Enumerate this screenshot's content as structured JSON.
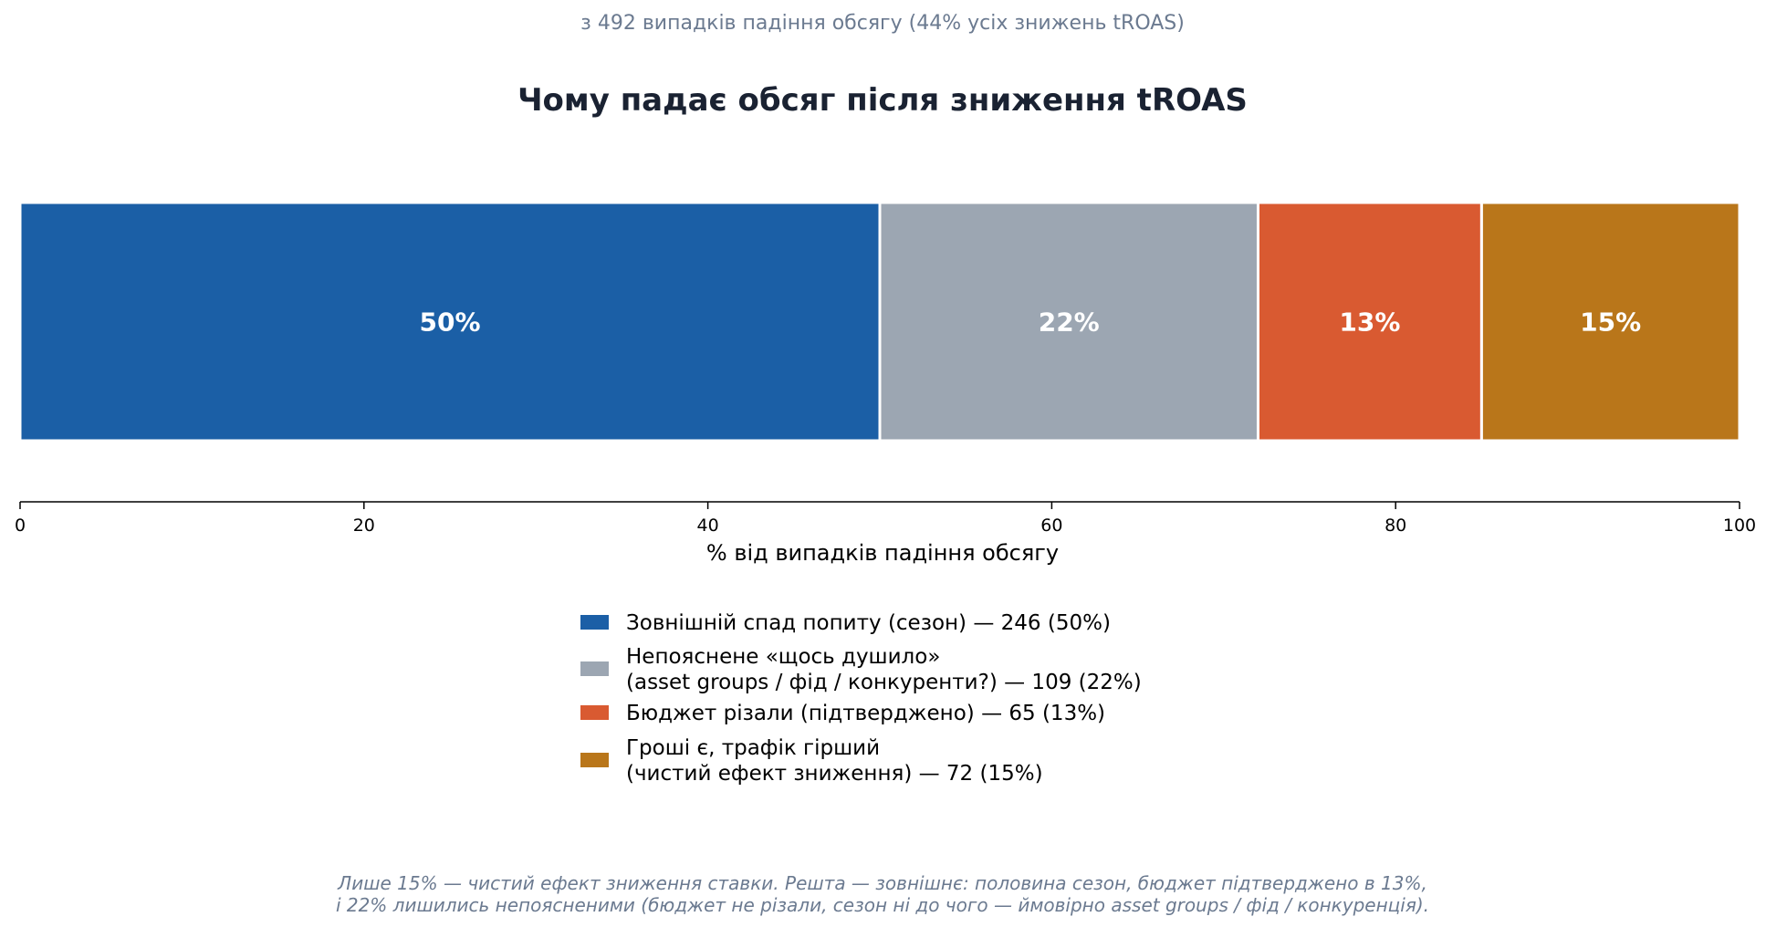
{
  "chart_data": {
    "type": "bar",
    "orientation": "horizontal-stacked",
    "title": "Чому падає обсяг після зниження tROAS",
    "subtitle": "з 492 випадків падіння обсягу (44% усіх знижень tROAS)",
    "xlabel": "% від випадків падіння обсягу",
    "ylabel": "",
    "xlim": [
      0,
      100
    ],
    "x_ticks": [
      0,
      20,
      40,
      60,
      80,
      100
    ],
    "grid": false,
    "legend_position": "below",
    "series": [
      {
        "value": 50,
        "value_label": "50%",
        "color": "#1b5fa6",
        "legend_lines": [
          "Зовнішній спад попиту (сезон)  —  246 (50%)"
        ]
      },
      {
        "value": 22,
        "value_label": "22%",
        "color": "#9ca6b2",
        "legend_lines": [
          "Непояснене «щось душило»",
          "(asset groups / фід / конкуренти?)  —  109 (22%)"
        ]
      },
      {
        "value": 13,
        "value_label": "13%",
        "color": "#d95a31",
        "legend_lines": [
          "Бюджет різали (підтверджено)  —  65 (13%)"
        ]
      },
      {
        "value": 15,
        "value_label": "15%",
        "color": "#b9761a",
        "legend_lines": [
          "Гроші є, трафік гірший",
          "(чистий ефект зниження)  —  72 (15%)"
        ]
      }
    ],
    "footnote_lines": [
      "Лише 15% — чистий ефект зниження ставки. Решта — зовнішнє: половина сезон, бюджет підтверджено в 13%,",
      "і 22% лишились непоясненими (бюджет не різали, сезон ні до чого — ймовірно asset groups / фід / конкуренція)."
    ]
  }
}
